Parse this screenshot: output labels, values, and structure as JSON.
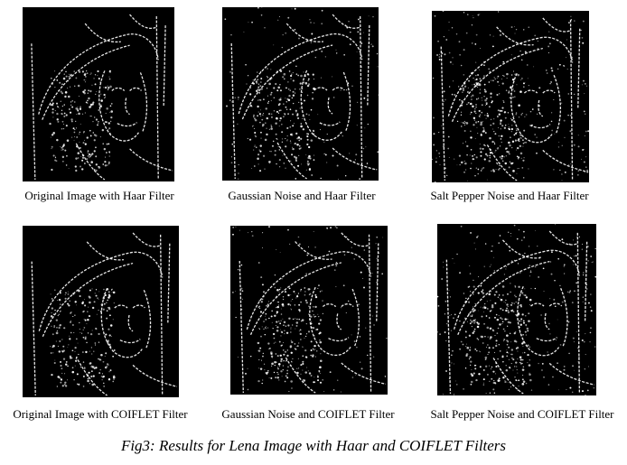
{
  "figure": {
    "panels": [
      {
        "label": "Original Image with Haar Filter",
        "noise": "none"
      },
      {
        "label": "Gaussian Noise and Haar Filter",
        "noise": "gaussian"
      },
      {
        "label": "Salt Pepper Noise and Haar Filter",
        "noise": "salt-pepper"
      },
      {
        "label": "Original Image with COIFLET Filter",
        "noise": "none"
      },
      {
        "label": "Gaussian Noise and COIFLET Filter",
        "noise": "gaussian"
      },
      {
        "label": "Salt Pepper Noise and COIFLET Filter",
        "noise": "salt-pepper"
      }
    ],
    "caption": "Fig3: Results for Lena Image with Haar and COIFLET Filters"
  }
}
